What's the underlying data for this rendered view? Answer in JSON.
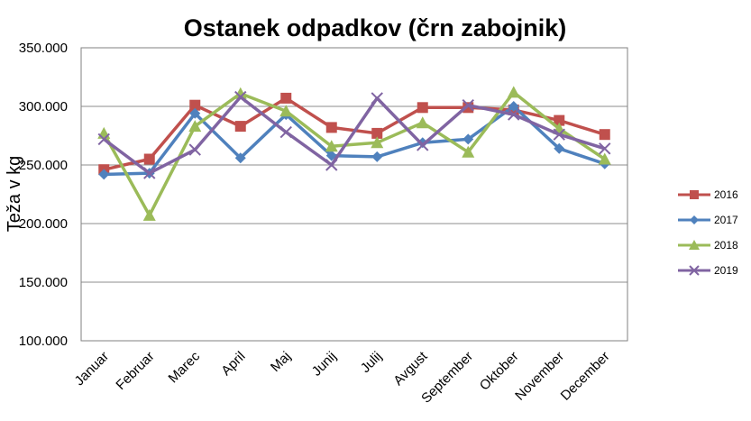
{
  "chart_data": {
    "type": "line",
    "title": "Ostanek odpadkov (črn zabojnik)",
    "ylabel": "Teža v kg",
    "xlabel": "",
    "categories": [
      "Januar",
      "Februar",
      "Marec",
      "April",
      "Maj",
      "Junij",
      "Julij",
      "Avgust",
      "September",
      "Oktober",
      "November",
      "December"
    ],
    "ylim": [
      100000,
      350000
    ],
    "ytick_labels": [
      "100.000",
      "150.000",
      "200.000",
      "250.000",
      "300.000",
      "350.000"
    ],
    "ytick_values": [
      100000,
      150000,
      200000,
      250000,
      300000,
      350000
    ],
    "grid": true,
    "legend_position": "right",
    "series": [
      {
        "name": "2016",
        "color": "#C0504D",
        "marker": "square",
        "values": [
          246000,
          255000,
          301000,
          283000,
          307000,
          282000,
          277000,
          299000,
          299000,
          297000,
          288000,
          276000
        ]
      },
      {
        "name": "2017",
        "color": "#4F81BD",
        "marker": "diamond",
        "values": [
          242000,
          243000,
          294000,
          256000,
          293000,
          258000,
          257000,
          269000,
          272000,
          300000,
          264000,
          251000
        ]
      },
      {
        "name": "2018",
        "color": "#9BBB59",
        "marker": "triangle",
        "values": [
          277000,
          207000,
          283000,
          311000,
          296000,
          266000,
          269000,
          286000,
          261000,
          312000,
          281000,
          255000
        ]
      },
      {
        "name": "2019",
        "color": "#8064A2",
        "marker": "x",
        "values": [
          272000,
          243000,
          263000,
          308000,
          278000,
          250000,
          307000,
          267000,
          301000,
          293000,
          276000,
          264000
        ]
      }
    ]
  }
}
